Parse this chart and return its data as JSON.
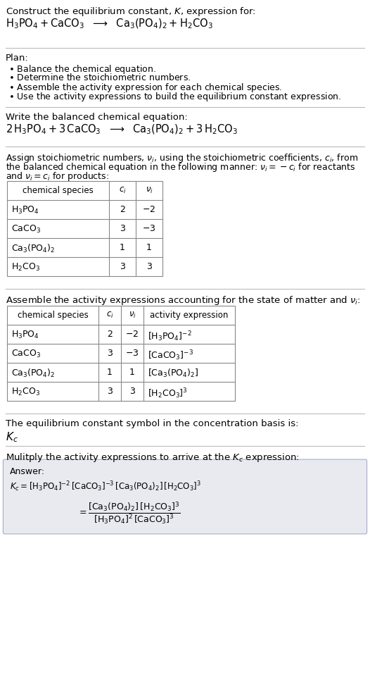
{
  "bg_color": "#ffffff",
  "title": "Construct the equilibrium constant, $K$, expression for:",
  "rxn_unbalanced": "$\\mathrm{H_3PO_4 + CaCO_3}$   $\\longrightarrow$   $\\mathrm{Ca_3(PO_4)_2 + H_2CO_3}$",
  "plan_header": "Plan:",
  "plan_items": [
    "$\\bullet$ Balance the chemical equation.",
    "$\\bullet$ Determine the stoichiometric numbers.",
    "$\\bullet$ Assemble the activity expression for each chemical species.",
    "$\\bullet$ Use the activity expressions to build the equilibrium constant expression."
  ],
  "balanced_header": "Write the balanced chemical equation:",
  "rxn_balanced": "$\\mathrm{2\\,H_3PO_4 + 3\\,CaCO_3}$   $\\longrightarrow$   $\\mathrm{Ca_3(PO_4)_2 + 3\\,H_2CO_3}$",
  "stoich_header_parts": [
    "Assign stoichiometric numbers, $\\nu_i$, using the stoichiometric coefficients, $c_i$, from",
    "the balanced chemical equation in the following manner: $\\nu_i = -c_i$ for reactants",
    "and $\\nu_i = c_i$ for products:"
  ],
  "table1_col_headers": [
    "chemical species",
    "$c_i$",
    "$\\nu_i$"
  ],
  "table1_rows": [
    [
      "$\\mathrm{H_3PO_4}$",
      "2",
      "$-2$"
    ],
    [
      "$\\mathrm{CaCO_3}$",
      "3",
      "$-3$"
    ],
    [
      "$\\mathrm{Ca_3(PO_4)_2}$",
      "1",
      "1"
    ],
    [
      "$\\mathrm{H_2CO_3}$",
      "3",
      "3"
    ]
  ],
  "activity_header": "Assemble the activity expressions accounting for the state of matter and $\\nu_i$:",
  "table2_col_headers": [
    "chemical species",
    "$c_i$",
    "$\\nu_i$",
    "activity expression"
  ],
  "table2_rows": [
    [
      "$\\mathrm{H_3PO_4}$",
      "2",
      "$-2$",
      "$[\\mathrm{H_3PO_4}]^{-2}$"
    ],
    [
      "$\\mathrm{CaCO_3}$",
      "3",
      "$-3$",
      "$[\\mathrm{CaCO_3}]^{-3}$"
    ],
    [
      "$\\mathrm{Ca_3(PO_4)_2}$",
      "1",
      "1",
      "$[\\mathrm{Ca_3(PO_4)_2}]$"
    ],
    [
      "$\\mathrm{H_2CO_3}$",
      "3",
      "3",
      "$[\\mathrm{H_2CO_3}]^{3}$"
    ]
  ],
  "kc_header": "The equilibrium constant symbol in the concentration basis is:",
  "kc_symbol": "$K_c$",
  "multiply_header": "Mulitply the activity expressions to arrive at the $K_c$ expression:",
  "answer_label": "Answer:",
  "answer_box_color": "#e8eaf0",
  "kc_line1": "$K_c = [\\mathrm{H_3PO_4}]^{-2}\\,[\\mathrm{CaCO_3}]^{-3}\\,[\\mathrm{Ca_3(PO_4)_2}]\\,[\\mathrm{H_2CO_3}]^3 = \\dfrac{[\\mathrm{Ca_3(PO_4)_2}]\\,[\\mathrm{H_2CO_3}]^3}{[\\mathrm{H_3PO_4}]^2\\,[\\mathrm{CaCO_3}]^3}$",
  "fig_width": 5.26,
  "fig_height": 9.61,
  "dpi": 100
}
